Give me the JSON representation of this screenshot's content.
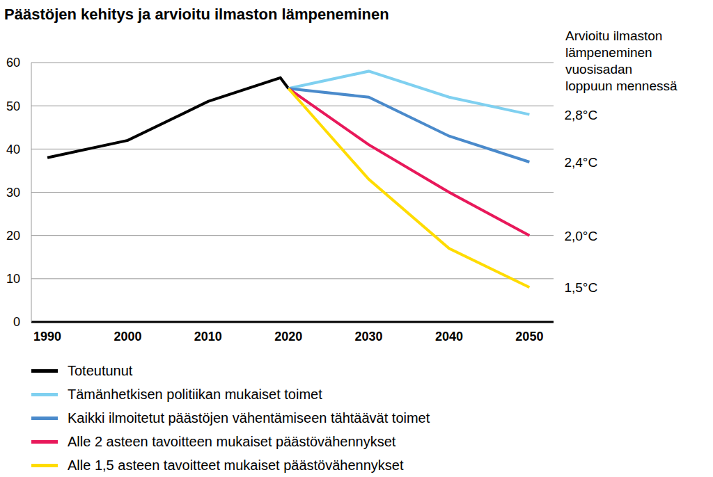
{
  "chart_data": {
    "type": "line",
    "title": "Päästöjen kehitys ja arvioitu ilmaston lämpeneminen",
    "right_title": [
      "Arvioitu ilmaston",
      "lämpeneminen",
      "vuosisadan",
      "loppuun mennessä"
    ],
    "x": [
      1990,
      2000,
      2010,
      2019,
      2020,
      2030,
      2040,
      2050
    ],
    "xlim": [
      1988,
      2053
    ],
    "xticks": [
      1990,
      2000,
      2010,
      2020,
      2030,
      2040,
      2050
    ],
    "ylim": [
      0,
      60
    ],
    "yticks": [
      0,
      10,
      20,
      30,
      40,
      50,
      60
    ],
    "grid": true,
    "legend": "bottom",
    "series": [
      {
        "name": "Toteutunut",
        "color": "#000000",
        "values": [
          38,
          42,
          51,
          56.5,
          54,
          null,
          null,
          null
        ]
      },
      {
        "name": "Tämänhetkisen politiikan mukaiset toimet",
        "color": "#7fd0f0",
        "values": [
          null,
          null,
          null,
          null,
          54,
          58,
          52,
          48
        ],
        "end_label": "2,8°C"
      },
      {
        "name": "Kaikki ilmoitetut päästöjen vähentämiseen tähtäävät toimet",
        "color": "#4a8acb",
        "values": [
          null,
          null,
          null,
          null,
          54,
          52,
          43,
          37
        ],
        "end_label": "2,4°C"
      },
      {
        "name": "Alle 2 asteen tavoitteen mukaiset päästövähennykset",
        "color": "#e8185a",
        "values": [
          null,
          null,
          null,
          null,
          54,
          41,
          30,
          20
        ],
        "end_label": "2,0°C"
      },
      {
        "name": "Alle 1,5 asteen tavoitteet mukaiset päästövähennykset",
        "color": "#ffdc00",
        "values": [
          null,
          null,
          null,
          null,
          54,
          33,
          17,
          8
        ],
        "end_label": "1,5°C"
      }
    ]
  }
}
